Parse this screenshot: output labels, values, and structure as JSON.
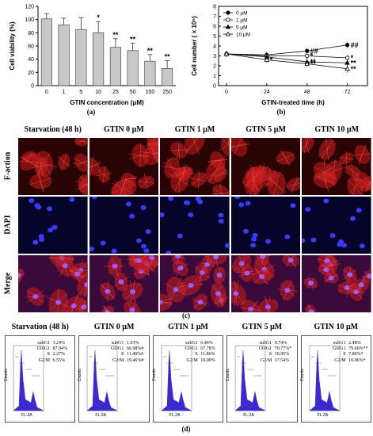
{
  "chart_data": [
    {
      "type": "bar",
      "categories": [
        "0",
        "1",
        "5",
        "10",
        "25",
        "50",
        "100",
        "250"
      ],
      "values": [
        101,
        92,
        85,
        80,
        58,
        53,
        37,
        26
      ],
      "errors": [
        8,
        10,
        18,
        17,
        13,
        11,
        10,
        12
      ],
      "significance": [
        "",
        "",
        "",
        "*",
        "**",
        "**",
        "**",
        "**"
      ],
      "xlabel": "GTIN concentration (μM)",
      "ylabel": "Cell viability (%)",
      "ylim": [
        0,
        120
      ],
      "yticks": [
        "0",
        "20",
        "40",
        "60",
        "80",
        "100",
        "120"
      ],
      "grid": false,
      "label": "(a)"
    },
    {
      "type": "line",
      "x": [
        0,
        24,
        48,
        72
      ],
      "xticks": [
        "0",
        "24",
        "48",
        "72"
      ],
      "xlabel": "GTIN-treated time (h)",
      "ylabel": "Cell number ( × 10⁵)",
      "ylim": [
        0,
        8
      ],
      "yticks": [
        "0",
        "1",
        "2",
        "3",
        "4",
        "5",
        "6",
        "7",
        "8"
      ],
      "legend_position": "top-left",
      "series": [
        {
          "name": "0 μM",
          "values": [
            3.2,
            3.1,
            3.5,
            4.1
          ],
          "errors": [
            0.3,
            0.3,
            0.3,
            0.3
          ],
          "marks": [
            "",
            "",
            "##",
            "##"
          ],
          "marker": "filled-circle"
        },
        {
          "name": "1 μM",
          "values": [
            3.2,
            3.0,
            3.0,
            2.8
          ],
          "errors": [
            0.3,
            0.4,
            0.3,
            0.3
          ],
          "marks": [
            "",
            "",
            "*",
            "*"
          ],
          "marker": "open-circle"
        },
        {
          "name": "5 μM",
          "values": [
            3.2,
            2.9,
            2.4,
            2.3
          ],
          "errors": [
            0.3,
            0.3,
            0.3,
            0.3
          ],
          "marks": [
            "",
            "",
            "**",
            "**"
          ],
          "marker": "filled-triangle"
        },
        {
          "name": "10 μM",
          "values": [
            3.2,
            2.6,
            2.2,
            1.7
          ],
          "errors": [
            0.3,
            0.3,
            0.3,
            0.4
          ],
          "marks": [
            "",
            "*",
            "**",
            "**"
          ],
          "marker": "open-triangle"
        }
      ],
      "label": "(b)"
    }
  ],
  "panel_c": {
    "columns": [
      "Starvation (48 h)",
      "GTIN 0 μM",
      "GTIN 1 μM",
      "GTIN 5 μM",
      "GTIN 10 μM"
    ],
    "rows": [
      "F-action",
      "DAPI",
      "Merge"
    ],
    "label": "(c)",
    "colors": {
      "factin": "#c81e1e",
      "dapi_bg": "#05052a",
      "nuclei": "#3a3aff",
      "merge_bg": "#3a0a3a"
    }
  },
  "panel_d": {
    "label": "(d)",
    "titles": [
      "Starvation (48 h)",
      "GTIN 0 μM",
      "GTIN 1 μM",
      "GTIN 5 μM",
      "GTIN 10 μM"
    ],
    "xlabel": "FL-2A",
    "ylabel": "Counts",
    "stats": [
      {
        "subG1": "3.24%",
        "G0G1": "87.94%",
        "S": "2.27%",
        "G2M": "6.55%"
      },
      {
        "subG1": "1.93%",
        "G0G1": "66.98%#",
        "S": "11.49%#",
        "G2M": "19.46%#"
      },
      {
        "subG1": "0.46%",
        "G0G1": "67.78%",
        "S": "11.86%",
        "G2M": "19.90%"
      },
      {
        "subG1": "0.74%",
        "G0G1": "70.77%*",
        "S": "10.95%",
        "G2M": "17.54%"
      },
      {
        "subG1": "2.48%",
        "G0G1": "79.66%**",
        "S": "7.80%*",
        "G2M": "10.06%*"
      }
    ],
    "stat_labels": {
      "subG1": "subG1",
      "G0G1": "G0/G1",
      "S": "S",
      "G2M": "G2/M"
    },
    "hist_color": "#3a2ad0"
  }
}
